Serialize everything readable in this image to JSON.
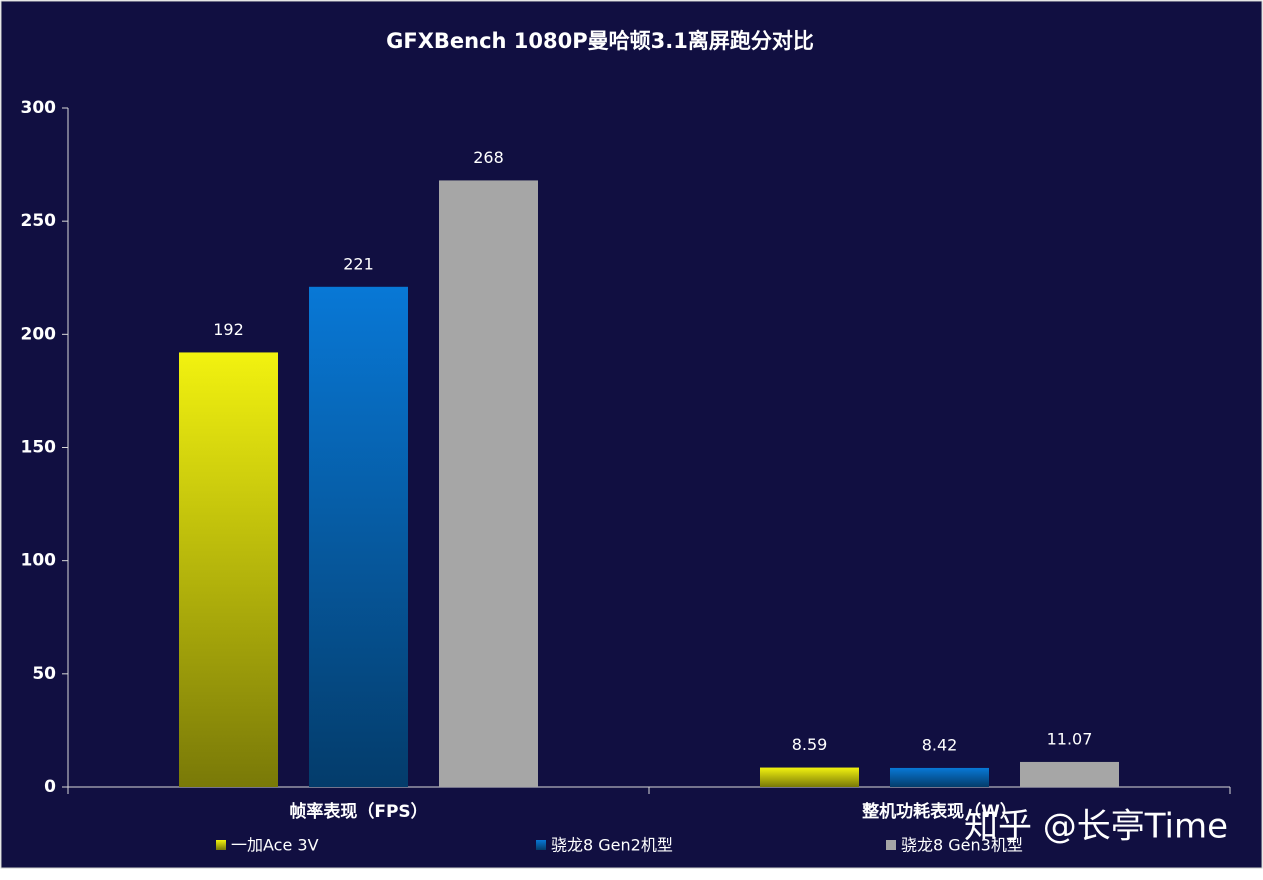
{
  "chart_data": {
    "type": "bar",
    "title": "GFXBench  1080P曼哈顿3.1离屏跑分对比",
    "categories": [
      "帧率表现（FPS）",
      "整机功耗表现（W）"
    ],
    "series": [
      {
        "name": "一加Ace 3V",
        "color": "#f2f20f",
        "values": [
          192,
          8.59
        ]
      },
      {
        "name": "骁龙8 Gen2机型",
        "color": "#0878d6",
        "values": [
          221,
          8.42
        ]
      },
      {
        "name": "骁龙8 Gen3机型",
        "color": "#a6a6a6",
        "values": [
          268,
          11.07
        ]
      }
    ],
    "ylim": [
      0,
      300
    ],
    "yticks": [
      0,
      50,
      100,
      150,
      200,
      250,
      300
    ],
    "grid": false,
    "legend": "bottom",
    "watermark": "知乎 @长亭Time"
  }
}
